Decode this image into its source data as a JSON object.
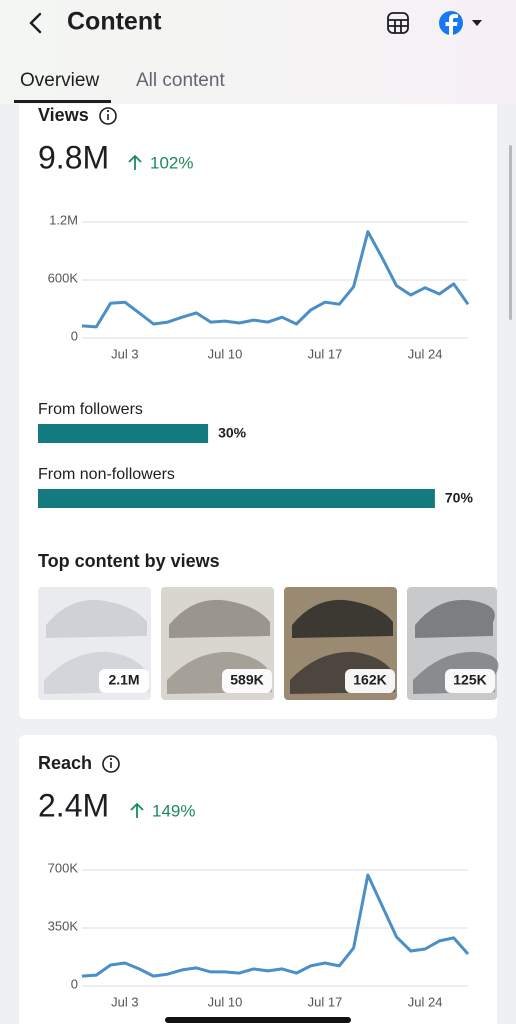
{
  "header": {
    "title": "Content"
  },
  "tabs": [
    "Overview",
    "All content"
  ],
  "views": {
    "title": "Views",
    "total": "9.8M",
    "change": "102%",
    "chart": {
      "type": "line",
      "color": "#4a8fc7",
      "x": [
        "Jun 30",
        "Jul 1",
        "Jul 2",
        "Jul 3",
        "Jul 4",
        "Jul 5",
        "Jul 6",
        "Jul 7",
        "Jul 8",
        "Jul 9",
        "Jul 10",
        "Jul 11",
        "Jul 12",
        "Jul 13",
        "Jul 14",
        "Jul 15",
        "Jul 16",
        "Jul 17",
        "Jul 18",
        "Jul 19",
        "Jul 20",
        "Jul 21",
        "Jul 22",
        "Jul 23",
        "Jul 24",
        "Jul 25",
        "Jul 26",
        "Jul 27"
      ],
      "values": [
        125000,
        115000,
        360000,
        370000,
        260000,
        145000,
        165000,
        215000,
        260000,
        165000,
        175000,
        155000,
        185000,
        165000,
        215000,
        145000,
        290000,
        370000,
        350000,
        530000,
        1100000,
        830000,
        540000,
        445000,
        520000,
        455000,
        560000,
        350000
      ],
      "ylim": [
        0,
        1200000
      ],
      "yticks": [
        0,
        {
          "value": 600000,
          "label": "600K"
        },
        {
          "value": 1200000,
          "label": "1.2M"
        }
      ],
      "xticks": [
        "Jul 3",
        "Jul 10",
        "Jul 17",
        "Jul 24"
      ],
      "grid": true
    },
    "breakdown": {
      "type": "bar",
      "color": "#137b80",
      "categories": [
        "From followers",
        "From non-followers"
      ],
      "values": [
        30,
        70
      ],
      "value_labels": [
        "30%",
        "70%"
      ]
    },
    "top_content": {
      "title": "Top content by views",
      "values": [
        2100000,
        589000,
        162000,
        125000
      ],
      "value_labels": [
        "2.1M",
        "589K",
        "162K",
        "125K"
      ]
    }
  },
  "reach": {
    "title": "Reach",
    "total": "2.4M",
    "change": "149%",
    "chart": {
      "type": "line",
      "color": "#4a8fc7",
      "x": [
        "Jun 30",
        "Jul 1",
        "Jul 2",
        "Jul 3",
        "Jul 4",
        "Jul 5",
        "Jul 6",
        "Jul 7",
        "Jul 8",
        "Jul 9",
        "Jul 10",
        "Jul 11",
        "Jul 12",
        "Jul 13",
        "Jul 14",
        "Jul 15",
        "Jul 16",
        "Jul 17",
        "Jul 18",
        "Jul 19",
        "Jul 20",
        "Jul 21",
        "Jul 22",
        "Jul 23",
        "Jul 24",
        "Jul 25",
        "Jul 26",
        "Jul 27"
      ],
      "values": [
        60000,
        66000,
        127000,
        139000,
        103000,
        60000,
        72000,
        97000,
        109000,
        85000,
        85000,
        78000,
        103000,
        91000,
        103000,
        78000,
        121000,
        139000,
        121000,
        230000,
        670000,
        483000,
        296000,
        211000,
        223000,
        272000,
        290000,
        193000
      ],
      "ylim": [
        0,
        700000
      ],
      "yticks": [
        0,
        {
          "value": 350000,
          "label": "350K"
        },
        {
          "value": 700000,
          "label": "700K"
        }
      ],
      "xticks": [
        "Jul 3",
        "Jul 10",
        "Jul 17",
        "Jul 24"
      ],
      "grid": true
    }
  }
}
